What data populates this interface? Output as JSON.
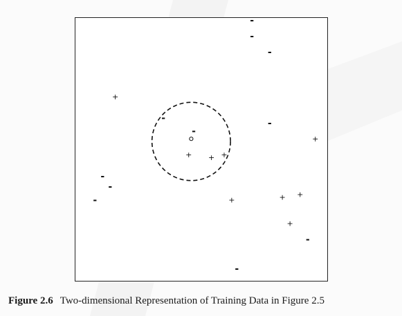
{
  "figure": {
    "caption_label": "Figure 2.6",
    "caption_text": "Two-dimensional Representation of Training Data in Figure 2.5",
    "plus_symbol": "+",
    "minus_symbol": "-"
  },
  "chart_data": {
    "type": "scatter",
    "title": "",
    "xlabel": "",
    "ylabel": "",
    "xlim": [
      0,
      1
    ],
    "ylim": [
      0,
      1
    ],
    "grid": false,
    "legend": "none",
    "series": [
      {
        "marker": "+",
        "points": [
          [
            0.16,
            0.7
          ],
          [
            0.45,
            0.48
          ],
          [
            0.54,
            0.47
          ],
          [
            0.59,
            0.48
          ],
          [
            0.62,
            0.31
          ],
          [
            0.82,
            0.32
          ],
          [
            0.89,
            0.33
          ],
          [
            0.85,
            0.22
          ],
          [
            0.95,
            0.54
          ]
        ]
      },
      {
        "marker": "-",
        "points": [
          [
            0.7,
            0.99
          ],
          [
            0.7,
            0.93
          ],
          [
            0.77,
            0.87
          ],
          [
            0.35,
            0.62
          ],
          [
            0.47,
            0.57
          ],
          [
            0.77,
            0.6
          ],
          [
            0.11,
            0.4
          ],
          [
            0.14,
            0.36
          ],
          [
            0.08,
            0.31
          ],
          [
            0.92,
            0.16
          ],
          [
            0.64,
            0.05
          ]
        ]
      },
      {
        "marker": "o",
        "points": [
          [
            0.46,
            0.54
          ]
        ]
      }
    ],
    "annotations": [
      {
        "type": "dashed-circle",
        "center": [
          0.46,
          0.53
        ],
        "radius": 0.155
      }
    ]
  }
}
